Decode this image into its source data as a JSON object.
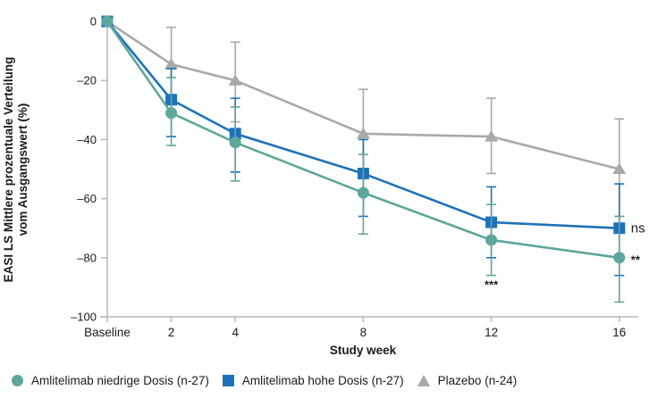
{
  "chart_data": {
    "type": "line",
    "title": "",
    "xlabel": "Study week",
    "ylabel_lines": [
      "EASI LS Mittlere prozentuale Verteilung",
      "vom Ausgangswert (%)"
    ],
    "x_tick_labels": [
      "Baseline",
      "2",
      "4",
      "8",
      "12",
      "16"
    ],
    "x_weeks": [
      0,
      2,
      4,
      8,
      12,
      16
    ],
    "ylim": [
      -100,
      0
    ],
    "y_ticks": [
      0,
      -20,
      -40,
      -60,
      -80,
      -100
    ],
    "y_tick_labels": [
      "0",
      "–20",
      "–40",
      "–60",
      "–80",
      "–100"
    ],
    "grid": false,
    "legend_position": "bottom",
    "axis_color": "#b8b8b8",
    "text_color": "#1a1a1a",
    "series": [
      {
        "name": "Amlitelimab niedrige Dosis (n-27)",
        "marker": "circle",
        "color": "#5ea69c",
        "values": [
          0,
          -31,
          -41,
          -58,
          -74,
          -80
        ],
        "err_high": [
          null,
          -19,
          -29,
          -45,
          -62,
          -66
        ],
        "err_low": [
          null,
          -42,
          -54,
          -72,
          -86,
          -95
        ]
      },
      {
        "name": "Amlitelimab hohe Dosis (n-27)",
        "marker": "square",
        "color": "#1d72b8",
        "values": [
          0,
          -26.5,
          -38,
          -51.5,
          -68,
          -70
        ],
        "err_high": [
          null,
          -16,
          -26,
          -40,
          -56,
          -55
        ],
        "err_low": [
          null,
          -39,
          -51,
          -66,
          -80,
          -86
        ]
      },
      {
        "name": "Plazebo (n-24)",
        "marker": "triangle",
        "color": "#a9a9a9",
        "values": [
          0,
          -14.5,
          -20,
          -38,
          -39,
          -50
        ],
        "err_high": [
          null,
          -2,
          -7,
          -23,
          -26,
          -33
        ],
        "err_low": [
          null,
          -27,
          -34,
          -52,
          -51.5,
          -66
        ]
      }
    ],
    "annotations": [
      {
        "text": "***",
        "week": 12,
        "value": -90.5,
        "dx": 0,
        "anchor": "middle",
        "bold": true,
        "size": 13
      },
      {
        "text": "ns",
        "week": 16,
        "value": -71.5,
        "dx": 13,
        "anchor": "start",
        "bold": false,
        "size": 15
      },
      {
        "text": "**",
        "week": 16,
        "value": -82,
        "dx": 13,
        "anchor": "start",
        "bold": true,
        "size": 13
      }
    ]
  }
}
